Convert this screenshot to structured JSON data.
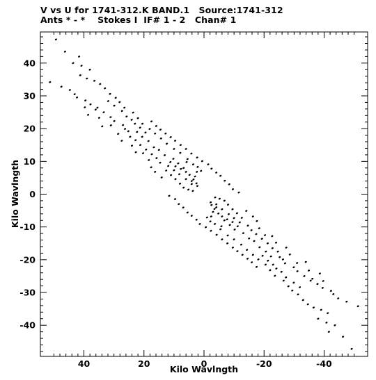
{
  "header": {
    "line1": "V vs U for 1741-312.K BAND.1   Source:1741-312",
    "line2": "Ants * - *    Stokes I  IF# 1 - 2   Chan# 1"
  },
  "chart_data": {
    "type": "scatter",
    "title": "V vs U for 1741-312.K BAND.1   Source:1741-312",
    "subtitle": "Ants * - *    Stokes I  IF# 1 - 2   Chan# 1",
    "xlabel": "Kilo Wavlngth",
    "ylabel": "Kilo Wavlngth",
    "xlim": [
      54.5,
      -54.5
    ],
    "ylim": [
      -49.5,
      49.5
    ],
    "x_reversed": true,
    "x_ticks": [
      40,
      20,
      0,
      -20,
      -40
    ],
    "x_tick_labels": [
      "40",
      "20",
      "0",
      "-20",
      "-40"
    ],
    "y_ticks": [
      40,
      30,
      20,
      10,
      0,
      -10,
      -20,
      -30,
      -40
    ],
    "y_tick_labels": [
      "40",
      "30",
      "20",
      "10",
      "0",
      "-10",
      "-20",
      "-30",
      "-40"
    ],
    "grid": false,
    "series": [
      {
        "points": [
          [
            49.3,
            47.2
          ],
          [
            46.3,
            43.5
          ],
          [
            41.6,
            42.0
          ],
          [
            43.6,
            40.0
          ],
          [
            40.8,
            39.2
          ],
          [
            41.2,
            36.3
          ],
          [
            39.0,
            35.3
          ],
          [
            38.0,
            38.0
          ],
          [
            36.5,
            34.6
          ],
          [
            34.6,
            33.6
          ],
          [
            33.0,
            32.3
          ],
          [
            31.3,
            30.6
          ],
          [
            29.4,
            29.4
          ],
          [
            28.1,
            28.1
          ],
          [
            26.5,
            26.4
          ],
          [
            23.6,
            24.9
          ],
          [
            22.0,
            23.2
          ],
          [
            20.5,
            21.5
          ],
          [
            18.1,
            19.9
          ],
          [
            16.3,
            18.5
          ],
          [
            14.3,
            17.0
          ],
          [
            12.4,
            15.4
          ],
          [
            10.0,
            13.8
          ],
          [
            7.9,
            12.6
          ],
          [
            5.5,
            10.7
          ],
          [
            3.6,
            9.1
          ],
          [
            2.1,
            8.3
          ],
          [
            1.0,
            7.1
          ],
          [
            51.3,
            34.2
          ],
          [
            47.5,
            32.8
          ],
          [
            44.7,
            31.8
          ],
          [
            43.1,
            30.5
          ],
          [
            42.3,
            29.5
          ],
          [
            39.5,
            28.6
          ],
          [
            37.8,
            27.4
          ],
          [
            35.5,
            26.4
          ],
          [
            33.4,
            25.0
          ],
          [
            31.1,
            23.5
          ],
          [
            29.9,
            22.3
          ],
          [
            27.0,
            21.1
          ],
          [
            25.2,
            19.2
          ],
          [
            24.6,
            17.5
          ],
          [
            22.8,
            16.5
          ],
          [
            21.2,
            15.0
          ],
          [
            19.3,
            13.6
          ],
          [
            17.4,
            12.2
          ],
          [
            15.8,
            11.0
          ],
          [
            14.6,
            9.6
          ],
          [
            11.9,
            8.6
          ],
          [
            10.0,
            7.3
          ],
          [
            8.2,
            6.1
          ],
          [
            6.0,
            4.6
          ],
          [
            4.1,
            3.1
          ],
          [
            34.9,
            23.3
          ],
          [
            36.1,
            25.8
          ],
          [
            38.6,
            24.2
          ],
          [
            39.7,
            26.5
          ],
          [
            33.9,
            20.7
          ],
          [
            31.0,
            21.0
          ],
          [
            28.6,
            18.4
          ],
          [
            26.3,
            19.9
          ],
          [
            27.4,
            16.3
          ],
          [
            24.0,
            14.8
          ],
          [
            22.7,
            12.8
          ],
          [
            20.3,
            12.5
          ],
          [
            18.4,
            10.4
          ],
          [
            20.6,
            17.5
          ],
          [
            22.3,
            19.0
          ],
          [
            18.5,
            16.2
          ],
          [
            16.7,
            14.3
          ],
          [
            15.0,
            13.5
          ],
          [
            13.1,
            11.9
          ],
          [
            11.2,
            9.8
          ],
          [
            9.5,
            8.5
          ],
          [
            7.7,
            7.7
          ],
          [
            12.6,
            7.2
          ],
          [
            11.0,
            5.8
          ],
          [
            9.5,
            4.6
          ],
          [
            8.0,
            3.2
          ],
          [
            6.8,
            2.0
          ],
          [
            5.2,
            1.4
          ],
          [
            3.7,
            1.0
          ],
          [
            10.2,
            10.8
          ],
          [
            8.6,
            9.4
          ],
          [
            6.8,
            8.0
          ],
          [
            6.0,
            6.8
          ],
          [
            4.8,
            5.9
          ],
          [
            3.5,
            4.5
          ],
          [
            2.5,
            3.3
          ],
          [
            17.6,
            8.2
          ],
          [
            16.3,
            6.8
          ],
          [
            14.1,
            5.1
          ],
          [
            31.9,
            28.4
          ],
          [
            29.9,
            27.0
          ],
          [
            27.3,
            25.4
          ],
          [
            25.8,
            23.7
          ],
          [
            24.1,
            22.7
          ],
          [
            23.0,
            21.5
          ],
          [
            17.5,
            22.2
          ],
          [
            15.9,
            20.8
          ],
          [
            14.5,
            19.7
          ],
          [
            12.8,
            18.5
          ],
          [
            11.1,
            17.4
          ],
          [
            9.6,
            16.3
          ],
          [
            7.8,
            15.0
          ],
          [
            6.0,
            13.8
          ],
          [
            4.2,
            12.4
          ],
          [
            2.3,
            11.2
          ],
          [
            0.6,
            10.1
          ],
          [
            -1.4,
            9.1
          ],
          [
            -2.5,
            7.8
          ],
          [
            -4.1,
            6.6
          ],
          [
            -5.5,
            5.6
          ],
          [
            -6.9,
            4.1
          ],
          [
            -8.4,
            3.0
          ],
          [
            -9.6,
            1.5
          ],
          [
            -11.6,
            0.5
          ],
          [
            19.5,
            18.8
          ],
          [
            21.3,
            20.3
          ],
          [
            4.1,
            4.0
          ],
          [
            2.2,
            2.5
          ],
          [
            3.0,
            5.4
          ],
          [
            5.8,
            9.8
          ],
          [
            2.4,
            6.8
          ],
          [
            -49.2,
            -47.2
          ],
          [
            -46.3,
            -43.5
          ],
          [
            -41.6,
            -42.0
          ],
          [
            -43.6,
            -40.0
          ],
          [
            -40.8,
            -39.2
          ],
          [
            -41.2,
            -36.3
          ],
          [
            -39.0,
            -35.3
          ],
          [
            -38.0,
            -38.0
          ],
          [
            -36.5,
            -34.6
          ],
          [
            -34.6,
            -33.6
          ],
          [
            -33.0,
            -32.3
          ],
          [
            -31.3,
            -30.6
          ],
          [
            -29.4,
            -29.4
          ],
          [
            -28.1,
            -28.1
          ],
          [
            -26.5,
            -26.4
          ],
          [
            -23.6,
            -24.9
          ],
          [
            -22.0,
            -23.2
          ],
          [
            -20.5,
            -21.5
          ],
          [
            -18.1,
            -19.9
          ],
          [
            -16.3,
            -18.5
          ],
          [
            -14.3,
            -17.0
          ],
          [
            -12.4,
            -15.4
          ],
          [
            -10.0,
            -13.8
          ],
          [
            -7.9,
            -12.6
          ],
          [
            -5.5,
            -10.7
          ],
          [
            -3.6,
            -9.1
          ],
          [
            -2.1,
            -8.3
          ],
          [
            -1.0,
            -7.1
          ],
          [
            -51.3,
            -34.2
          ],
          [
            -47.5,
            -32.8
          ],
          [
            -44.7,
            -31.8
          ],
          [
            -43.1,
            -30.5
          ],
          [
            -42.3,
            -29.5
          ],
          [
            -39.5,
            -28.6
          ],
          [
            -37.8,
            -27.4
          ],
          [
            -35.5,
            -26.4
          ],
          [
            -33.4,
            -25.0
          ],
          [
            -31.1,
            -23.5
          ],
          [
            -29.9,
            -22.3
          ],
          [
            -27.0,
            -21.1
          ],
          [
            -25.2,
            -19.2
          ],
          [
            -24.6,
            -17.5
          ],
          [
            -22.8,
            -16.5
          ],
          [
            -21.2,
            -15.0
          ],
          [
            -19.3,
            -13.6
          ],
          [
            -17.4,
            -12.2
          ],
          [
            -15.8,
            -11.0
          ],
          [
            -14.6,
            -9.6
          ],
          [
            -11.9,
            -8.6
          ],
          [
            -10.0,
            -7.3
          ],
          [
            -8.2,
            -6.1
          ],
          [
            -6.0,
            -4.6
          ],
          [
            -4.1,
            -3.1
          ],
          [
            -34.9,
            -23.3
          ],
          [
            -36.1,
            -25.8
          ],
          [
            -38.6,
            -24.2
          ],
          [
            -39.7,
            -26.5
          ],
          [
            -33.9,
            -20.7
          ],
          [
            -31.0,
            -21.0
          ],
          [
            -28.6,
            -18.4
          ],
          [
            -26.3,
            -19.9
          ],
          [
            -27.4,
            -16.3
          ],
          [
            -24.0,
            -14.8
          ],
          [
            -22.7,
            -12.8
          ],
          [
            -20.3,
            -12.5
          ],
          [
            -18.4,
            -10.4
          ],
          [
            -20.6,
            -17.5
          ],
          [
            -22.3,
            -19.0
          ],
          [
            -18.5,
            -16.2
          ],
          [
            -16.7,
            -14.3
          ],
          [
            -15.0,
            -13.5
          ],
          [
            -13.1,
            -11.9
          ],
          [
            -11.2,
            -9.8
          ],
          [
            -9.5,
            -8.5
          ],
          [
            -7.7,
            -7.7
          ],
          [
            -12.6,
            -7.2
          ],
          [
            -11.0,
            -5.8
          ],
          [
            -9.5,
            -4.6
          ],
          [
            -8.0,
            -3.2
          ],
          [
            -6.8,
            -2.0
          ],
          [
            -5.2,
            -1.4
          ],
          [
            -3.7,
            -1.0
          ],
          [
            -10.2,
            -10.8
          ],
          [
            -8.6,
            -9.4
          ],
          [
            -6.8,
            -8.0
          ],
          [
            -6.0,
            -6.8
          ],
          [
            -4.8,
            -5.9
          ],
          [
            -3.5,
            -4.5
          ],
          [
            -2.5,
            -3.3
          ],
          [
            -17.6,
            -8.2
          ],
          [
            -16.3,
            -6.8
          ],
          [
            -14.1,
            -5.1
          ],
          [
            -31.9,
            -28.4
          ],
          [
            -29.9,
            -27.0
          ],
          [
            -27.3,
            -25.4
          ],
          [
            -25.8,
            -23.7
          ],
          [
            -24.1,
            -22.7
          ],
          [
            -23.0,
            -21.5
          ],
          [
            -17.5,
            -22.2
          ],
          [
            -15.9,
            -20.8
          ],
          [
            -14.5,
            -19.7
          ],
          [
            -12.8,
            -18.5
          ],
          [
            -11.1,
            -17.4
          ],
          [
            -9.6,
            -16.3
          ],
          [
            -7.8,
            -15.0
          ],
          [
            -6.0,
            -13.8
          ],
          [
            -4.2,
            -12.4
          ],
          [
            -2.3,
            -11.2
          ],
          [
            -0.6,
            -10.1
          ],
          [
            1.4,
            -9.1
          ],
          [
            2.5,
            -7.8
          ],
          [
            4.1,
            -6.6
          ],
          [
            5.5,
            -5.6
          ],
          [
            6.9,
            -4.1
          ],
          [
            8.4,
            -3.0
          ],
          [
            9.6,
            -1.5
          ],
          [
            11.6,
            -0.5
          ],
          [
            -19.5,
            -18.8
          ],
          [
            -21.3,
            -20.3
          ],
          [
            -4.1,
            -4.0
          ],
          [
            -2.2,
            -2.5
          ],
          [
            -3.0,
            -5.4
          ],
          [
            -5.8,
            -9.8
          ],
          [
            -2.4,
            -6.8
          ]
        ]
      }
    ]
  }
}
